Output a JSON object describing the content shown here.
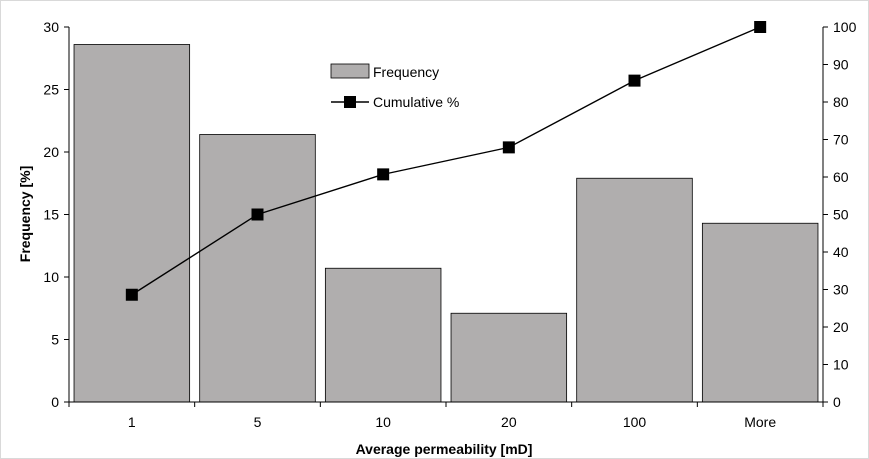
{
  "chart_data": {
    "type": "bar",
    "categories": [
      "1",
      "5",
      "10",
      "20",
      "100",
      "More"
    ],
    "xlabel": "Average permeability [mD]",
    "ylabel": "Frequency [%]",
    "ylim": [
      0,
      30
    ],
    "y_ticks": [
      "0",
      "5",
      "10",
      "15",
      "20",
      "25",
      "30"
    ],
    "y2lim": [
      0,
      100
    ],
    "y2_ticks": [
      "0",
      "10",
      "20",
      "30",
      "40",
      "50",
      "60",
      "70",
      "80",
      "90",
      "100"
    ],
    "grid": false,
    "legend_position": "top-center",
    "series": [
      {
        "name": "Frequency",
        "type": "bar",
        "axis": "left",
        "color": "#b0aeae",
        "values": [
          28.6,
          21.4,
          10.7,
          7.1,
          17.9,
          14.3
        ]
      },
      {
        "name": "Cumulative %",
        "type": "line",
        "axis": "right",
        "color": "#000000",
        "values": [
          28.6,
          50.0,
          60.7,
          67.9,
          85.7,
          100.0
        ]
      }
    ]
  }
}
